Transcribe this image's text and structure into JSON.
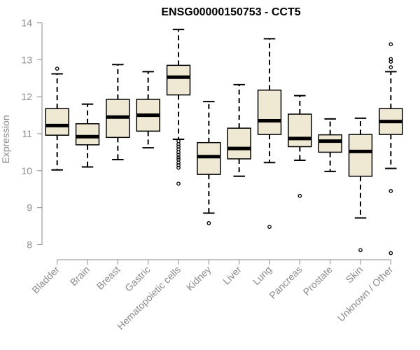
{
  "chart_data": {
    "type": "box",
    "title": "ENSG00000150753 - CCT5",
    "xlabel": "",
    "ylabel": "Expression",
    "ylim": [
      7.8,
      14.05
    ],
    "yticks": [
      8,
      9,
      10,
      11,
      12,
      13,
      14
    ],
    "grid": false,
    "colors": {
      "box_fill": "#efe8d2",
      "box_stroke": "#000000",
      "axis": "#8a8a8a"
    },
    "categories": [
      "Bladder",
      "Brain",
      "Breast",
      "Gastric",
      "Hematopoietic cells",
      "Kidney",
      "Liver",
      "Lung",
      "Pancreas",
      "Prostate",
      "Skin",
      "Unknown / Other"
    ],
    "boxes": [
      {
        "whisker_low": 10.02,
        "q1": 10.96,
        "median": 11.22,
        "q3": 11.68,
        "whisker_high": 12.62,
        "outliers": [
          12.76
        ]
      },
      {
        "whisker_low": 10.1,
        "q1": 10.7,
        "median": 10.92,
        "q3": 11.27,
        "whisker_high": 11.8,
        "outliers": []
      },
      {
        "whisker_low": 10.3,
        "q1": 10.9,
        "median": 11.45,
        "q3": 11.93,
        "whisker_high": 12.87,
        "outliers": []
      },
      {
        "whisker_low": 10.62,
        "q1": 11.07,
        "median": 11.5,
        "q3": 11.93,
        "whisker_high": 12.68,
        "outliers": []
      },
      {
        "whisker_low": 10.85,
        "q1": 12.05,
        "median": 12.53,
        "q3": 12.85,
        "whisker_high": 13.82,
        "outliers": [
          10.8,
          10.72,
          10.65,
          10.58,
          10.5,
          10.43,
          10.36,
          10.3,
          10.22,
          10.15,
          10.08,
          9.65
        ]
      },
      {
        "whisker_low": 8.85,
        "q1": 9.9,
        "median": 10.38,
        "q3": 10.76,
        "whisker_high": 11.87,
        "outliers": [
          8.58
        ]
      },
      {
        "whisker_low": 9.85,
        "q1": 10.32,
        "median": 10.6,
        "q3": 11.15,
        "whisker_high": 12.33,
        "outliers": []
      },
      {
        "whisker_low": 10.22,
        "q1": 10.98,
        "median": 11.35,
        "q3": 12.18,
        "whisker_high": 13.57,
        "outliers": [
          8.48
        ]
      },
      {
        "whisker_low": 10.28,
        "q1": 10.65,
        "median": 10.87,
        "q3": 11.53,
        "whisker_high": 12.03,
        "outliers": [
          9.32
        ]
      },
      {
        "whisker_low": 9.98,
        "q1": 10.5,
        "median": 10.8,
        "q3": 10.97,
        "whisker_high": 11.4,
        "outliers": []
      },
      {
        "whisker_low": 8.72,
        "q1": 9.85,
        "median": 10.52,
        "q3": 10.98,
        "whisker_high": 11.42,
        "outliers": [
          7.85
        ]
      },
      {
        "whisker_low": 10.06,
        "q1": 10.98,
        "median": 11.33,
        "q3": 11.68,
        "whisker_high": 12.68,
        "outliers": [
          12.8,
          12.95,
          13.02,
          13.42,
          9.45,
          7.77
        ]
      }
    ]
  }
}
